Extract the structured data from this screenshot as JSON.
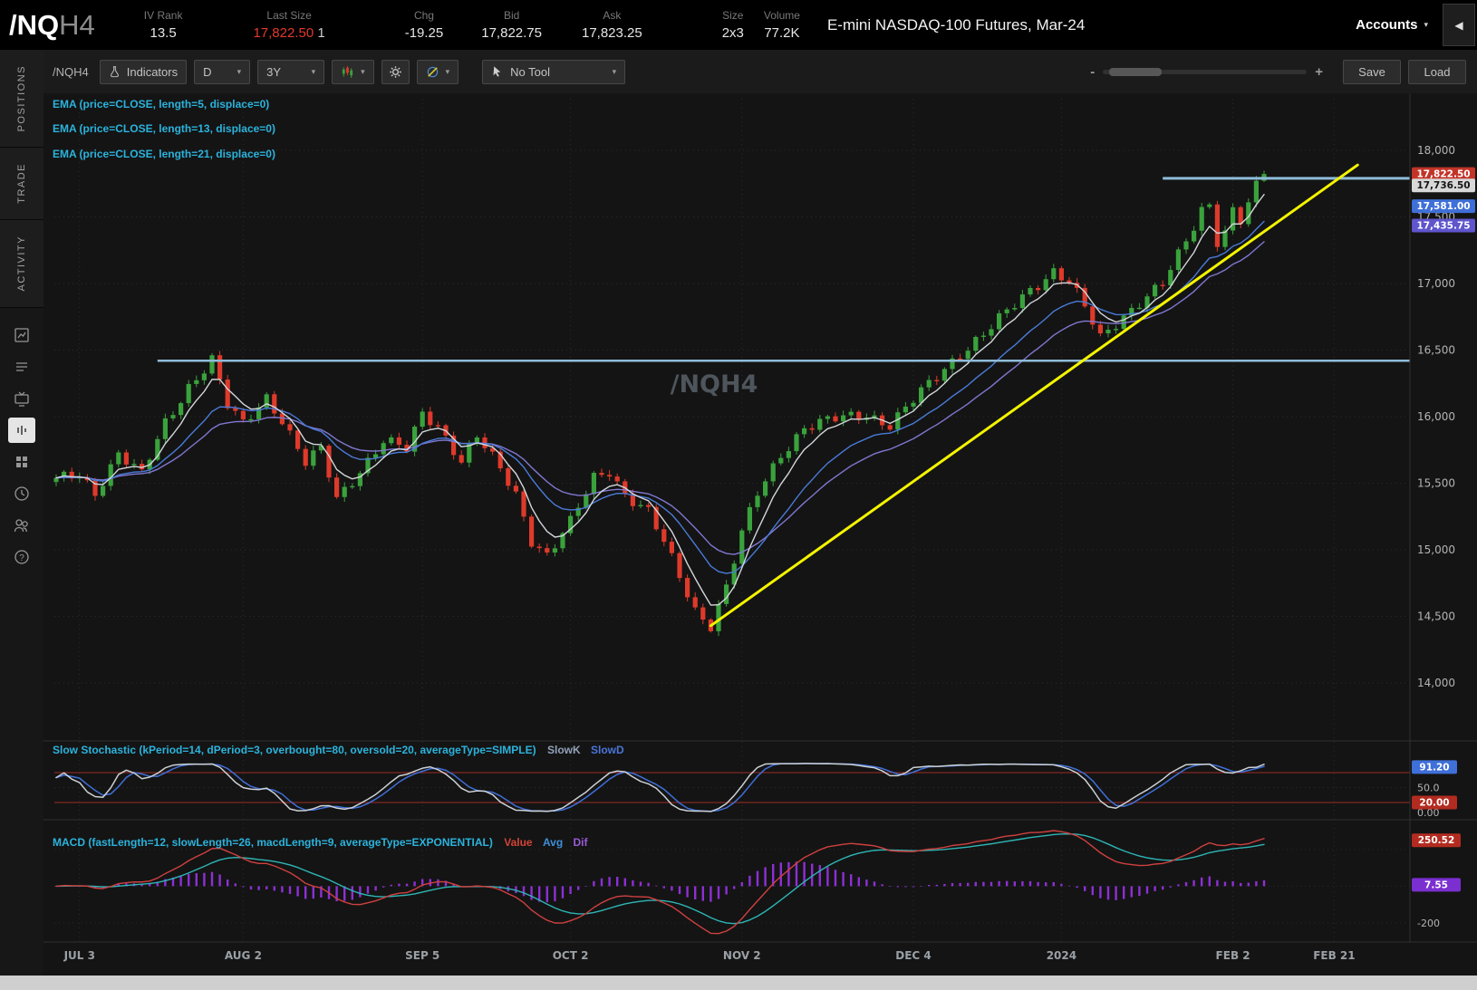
{
  "header": {
    "symbol_root": "/NQ",
    "symbol_month": "H4",
    "iv_rank_label": "IV Rank",
    "iv_rank": "13.5",
    "last_label": "Last Size",
    "last": "17,822.50",
    "last_size": "1",
    "chg_label": "Chg",
    "chg": "-19.25",
    "bid_label": "Bid",
    "bid": "17,822.75",
    "ask_label": "Ask",
    "ask": "17,823.25",
    "size_label": "Size",
    "size": "2x3",
    "volume_label": "Volume",
    "volume": "77.2K",
    "description": "E-mini NASDAQ-100 Futures, Mar-24",
    "accounts_label": "Accounts"
  },
  "icons": {
    "caret_down": "▾",
    "collapse_left": "◀",
    "zoom_out": "-",
    "zoom_in": "+",
    "help_glyph": "?"
  },
  "sidebar": {
    "tabs": [
      {
        "label": "POSITIONS"
      },
      {
        "label": "TRADE"
      },
      {
        "label": "ACTIVITY"
      }
    ],
    "icons": [
      "chart-gadget-icon",
      "list-gadget-icon",
      "tv-gadget-icon",
      "charts-active-icon",
      "grid-gadget-icon",
      "clock-gadget-icon",
      "people-gadget-icon",
      "help-gadget-icon"
    ]
  },
  "toolbar": {
    "symbol_label": "/NQH4",
    "indicators_label": "Indicators",
    "timeframe": "D",
    "range": "3Y",
    "tool_label": "No Tool",
    "save_label": "Save",
    "load_label": "Load"
  },
  "chart_data": {
    "type": "candlestick",
    "symbol": "/NQH4",
    "title": "E-mini NASDAQ-100 Futures, Mar-24",
    "watermark": "/NQH4",
    "last_price": 17822.5,
    "bars_total": 156,
    "bar_keyframes": [
      [
        0,
        15520
      ],
      [
        3,
        15560
      ],
      [
        5,
        15430
      ],
      [
        8,
        15730
      ],
      [
        11,
        15560
      ],
      [
        14,
        15950
      ],
      [
        17,
        16230
      ],
      [
        20,
        16430
      ],
      [
        22,
        16080
      ],
      [
        24,
        15940
      ],
      [
        27,
        16150
      ],
      [
        29,
        15980
      ],
      [
        32,
        15650
      ],
      [
        34,
        15750
      ],
      [
        36,
        15380
      ],
      [
        39,
        15600
      ],
      [
        42,
        15820
      ],
      [
        45,
        15750
      ],
      [
        47,
        16020
      ],
      [
        49,
        15940
      ],
      [
        52,
        15670
      ],
      [
        54,
        15850
      ],
      [
        57,
        15600
      ],
      [
        59,
        15420
      ],
      [
        61,
        15080
      ],
      [
        63,
        14960
      ],
      [
        66,
        15200
      ],
      [
        69,
        15540
      ],
      [
        71,
        15600
      ],
      [
        73,
        15420
      ],
      [
        76,
        15280
      ],
      [
        78,
        15050
      ],
      [
        80,
        14800
      ],
      [
        82,
        14550
      ],
      [
        84,
        14440
      ],
      [
        86,
        14720
      ],
      [
        88,
        15120
      ],
      [
        90,
        15420
      ],
      [
        93,
        15720
      ],
      [
        96,
        15920
      ],
      [
        100,
        15980
      ],
      [
        104,
        16020
      ],
      [
        107,
        15940
      ],
      [
        110,
        16120
      ],
      [
        113,
        16300
      ],
      [
        116,
        16480
      ],
      [
        119,
        16620
      ],
      [
        122,
        16780
      ],
      [
        125,
        16950
      ],
      [
        128,
        17100
      ],
      [
        130,
        17020
      ],
      [
        132,
        16820
      ],
      [
        134,
        16580
      ],
      [
        136,
        16700
      ],
      [
        139,
        16870
      ],
      [
        142,
        17000
      ],
      [
        144,
        17200
      ],
      [
        146,
        17420
      ],
      [
        147,
        17550
      ],
      [
        148,
        17600
      ],
      [
        149,
        17330
      ],
      [
        150,
        17400
      ],
      [
        151,
        17560
      ],
      [
        152,
        17480
      ],
      [
        153,
        17600
      ],
      [
        154,
        17720
      ],
      [
        155,
        17822.5
      ]
    ],
    "price_axis": [
      {
        "label": "18,000",
        "value": 18000
      },
      {
        "label": "17,500",
        "value": 17500
      },
      {
        "label": "17,000",
        "value": 17000
      },
      {
        "label": "16,500",
        "value": 16500
      },
      {
        "label": "16,000",
        "value": 16000
      },
      {
        "label": "15,500",
        "value": 15500
      },
      {
        "label": "15,000",
        "value": 15000
      },
      {
        "label": "14,500",
        "value": 14500
      },
      {
        "label": "14,000",
        "value": 14000
      }
    ],
    "x_axis": [
      {
        "label": "JUL 3",
        "bar": 3
      },
      {
        "label": "AUG 2",
        "bar": 24
      },
      {
        "label": "SEP 5",
        "bar": 47
      },
      {
        "label": "OCT 2",
        "bar": 66
      },
      {
        "label": "NOV 2",
        "bar": 88
      },
      {
        "label": "DEC 4",
        "bar": 110
      },
      {
        "label": "2024",
        "bar": 129
      },
      {
        "label": "FEB 2",
        "bar": 151
      },
      {
        "label": "FEB 21",
        "bar": 164
      }
    ],
    "hlines": [
      {
        "price": 16420,
        "from_bar": 13,
        "color": "#8fbcd9",
        "width": 2.5
      },
      {
        "price": 17790,
        "from_bar": 142,
        "color": "#8fbcd9",
        "width": 3
      }
    ],
    "trendline": {
      "from_bar": 84,
      "from_price": 14430,
      "to_bar": 167,
      "to_price": 17890,
      "color": "#f4f400",
      "width": 3
    },
    "studies": {
      "ema1": "EMA (price=CLOSE, length=5, displace=0)",
      "ema2": "EMA (price=CLOSE, length=13, displace=0)",
      "ema3": "EMA (price=CLOSE, length=21, displace=0)",
      "stoch_label": "Slow Stochastic (kPeriod=14, dPeriod=3, overbought=80, oversold=20, averageType=SIMPLE)",
      "stoch_k": "SlowK",
      "stoch_d": "SlowD",
      "macd_label": "MACD (fastLength=12, slowLength=26, macdLength=9, averageType=EXPONENTIAL)",
      "macd_value": "Value",
      "macd_avg": "Avg",
      "macd_dif": "Dif"
    },
    "stoch": {
      "overbought": 80,
      "oversold": 20,
      "ticks": [
        {
          "label": "50.0",
          "value": 50
        },
        {
          "label": "0.00",
          "value": 0
        }
      ],
      "bubbles": [
        {
          "text": "91.20",
          "value": 91.2,
          "bg": "#3f6fd8",
          "fg": "#ffffff"
        },
        {
          "text": "20.00",
          "value": 20,
          "bg": "#b32b20",
          "fg": "#ffffff"
        }
      ]
    },
    "macd": {
      "ticks": [
        {
          "label": "-200",
          "value": -200
        }
      ],
      "gridlines": [
        200,
        0,
        -200
      ],
      "bubbles": [
        {
          "text": "250.52",
          "value": 250.52,
          "bg": "#b32b20",
          "fg": "#ffffff"
        },
        {
          "text": "7.55",
          "value": 7.55,
          "bg": "#7b2fd0",
          "fg": "#ffffff"
        }
      ]
    },
    "price_bubbles": [
      {
        "text": "17,822.50",
        "value": 17822.5,
        "bg": "#c33428",
        "fg": "#ffffff"
      },
      {
        "text": "17,736.50",
        "value": 17736.5,
        "bg": "#d8d8d8",
        "fg": "#151515"
      },
      {
        "text": "17,581.00",
        "value": 17581,
        "bg": "#3f6fd8",
        "fg": "#ffffff"
      },
      {
        "text": "17,435.75",
        "value": 17435.75,
        "bg": "#5f55cc",
        "fg": "#ffffff"
      }
    ],
    "colors": {
      "bg": "#141414",
      "grid": "#2b2b2b",
      "separator": "#303030",
      "axis_text": "#b4b4b4",
      "xaxis_text": "#9aa0a5",
      "up": "#3aa23c",
      "down": "#de3a2b",
      "ema5": "#d3d7db",
      "ema13": "#4a7bd8",
      "ema21": "#8078d2",
      "slowk": "#ccd1d5",
      "slowd": "#3f6fd8",
      "stoch_line": "#9e2b23",
      "macd_value": "#d04040",
      "macd_avg": "#2fb5b5",
      "macd_hist": "#8e2fd6",
      "watermark": "#4e555c"
    }
  }
}
